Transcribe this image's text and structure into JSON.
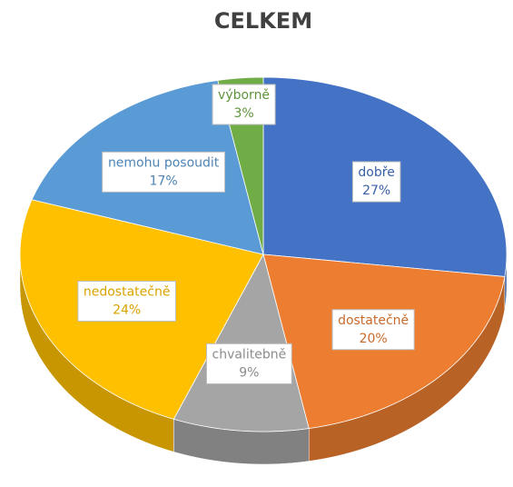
{
  "chart_data": {
    "type": "pie",
    "title": "CELKEM",
    "categories": [
      "dobře",
      "dostatečně",
      "chvalitebně",
      "nedostatečně",
      "nemohu posoudit",
      "výborně"
    ],
    "values": [
      27,
      20,
      9,
      24,
      17,
      3
    ],
    "value_labels": [
      "27%",
      "20%",
      "9%",
      "24%",
      "17%",
      "3%"
    ],
    "colors": [
      "#4472c4",
      "#ed7d31",
      "#a5a5a5",
      "#ffc000",
      "#5b9bd5",
      "#70ad47"
    ]
  }
}
